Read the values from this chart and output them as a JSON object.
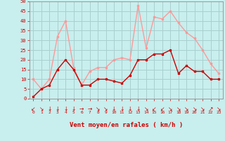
{
  "hours": [
    0,
    1,
    2,
    3,
    4,
    5,
    6,
    7,
    8,
    9,
    10,
    11,
    12,
    13,
    14,
    15,
    16,
    17,
    18,
    19,
    20,
    21,
    22,
    23
  ],
  "wind_mean": [
    1,
    5,
    7,
    15,
    20,
    15,
    7,
    7,
    10,
    10,
    9,
    8,
    12,
    20,
    20,
    23,
    23,
    25,
    13,
    17,
    14,
    14,
    10,
    10
  ],
  "wind_gust": [
    10,
    5,
    10,
    32,
    40,
    16,
    7,
    14,
    16,
    16,
    20,
    21,
    20,
    48,
    26,
    42,
    41,
    45,
    39,
    34,
    31,
    25,
    18,
    13
  ],
  "bg_color": "#c8eeed",
  "grid_color": "#aacfcf",
  "mean_color": "#cc0000",
  "gust_color": "#ff9999",
  "xlabel": "Vent moyen/en rafales ( km/h )",
  "xlabel_color": "#cc0000",
  "tick_color": "#cc0000",
  "spine_color": "#999999",
  "ylim": [
    0,
    50
  ],
  "yticks": [
    0,
    5,
    10,
    15,
    20,
    25,
    30,
    35,
    40,
    45,
    50
  ],
  "arrows": [
    "↙",
    "↘",
    "↓",
    "↓",
    "↓",
    "↓",
    "→",
    "→",
    "↘",
    "↘",
    "↓",
    "↓",
    "↓",
    "↓",
    "↘",
    "↙",
    "↙",
    "↘",
    "↘",
    "↘",
    "↘",
    "↘",
    "↗",
    "↘"
  ]
}
